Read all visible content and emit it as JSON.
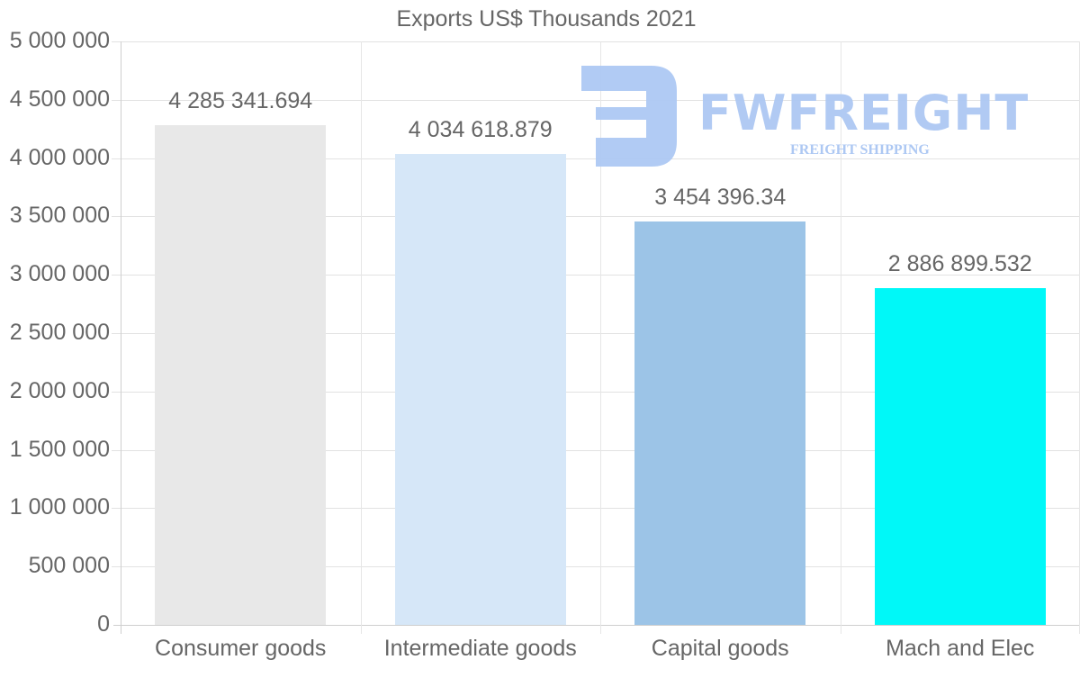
{
  "chart_data": {
    "type": "bar",
    "title": "Exports US$ Thousands 2021",
    "xlabel": "",
    "ylabel": "",
    "categories": [
      "Consumer goods",
      "Intermediate goods",
      "Capital goods",
      "Mach and Elec"
    ],
    "values": [
      4285341.694,
      4034618.879,
      3454396.34,
      2886899.532
    ],
    "value_labels": [
      "4 285 341.694",
      "4 034 618.879",
      "3 454 396.34",
      "2 886 899.532"
    ],
    "colors": [
      "#e8e8e8",
      "#d6e7f8",
      "#9cc4e7",
      "#00f8f8"
    ],
    "ylim": [
      0,
      5000000
    ],
    "yticks": [
      0,
      500000,
      1000000,
      1500000,
      2000000,
      2500000,
      3000000,
      3500000,
      4000000,
      4500000,
      5000000
    ],
    "ytick_labels": [
      "0",
      "500 000",
      "1 000 000",
      "1 500 000",
      "2 000 000",
      "2 500 000",
      "3 000 000",
      "3 500 000",
      "4 000 000",
      "4 500 000",
      "5 000 000"
    ],
    "grid": true,
    "legend": "none"
  },
  "watermark": {
    "brand": "FWFREIGHT",
    "tagline": "FREIGHT SHIPPING",
    "color": "#adc8f3"
  }
}
